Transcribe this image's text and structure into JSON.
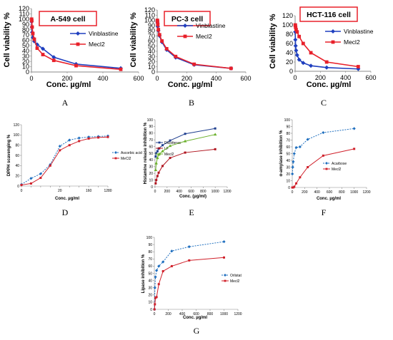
{
  "chart_data": [
    {
      "id": "A",
      "type": "line",
      "title": "A-549 cell",
      "xlabel": "Conc. µg/ml",
      "ylabel": "Cell viability %",
      "xlim": [
        0,
        600
      ],
      "ylim": [
        0,
        120
      ],
      "xticks": [
        0,
        200,
        400,
        600
      ],
      "yticks": [
        0,
        10,
        20,
        30,
        40,
        50,
        60,
        70,
        80,
        90,
        100,
        110,
        120
      ],
      "grid": false,
      "legend": "right",
      "series": [
        {
          "name": "Vinblastine",
          "color": "#1f3fbf",
          "marker": "diamond",
          "x": [
            1,
            2,
            4,
            8,
            16,
            32,
            64,
            125,
            250,
            500
          ],
          "y": [
            95,
            85,
            75,
            65,
            58,
            52,
            44,
            28,
            15,
            7
          ]
        },
        {
          "name": "Mecl2",
          "color": "#e8202a",
          "marker": "square",
          "x": [
            1,
            2,
            4,
            8,
            16,
            32,
            64,
            125,
            250,
            500
          ],
          "y": [
            100,
            97,
            85,
            73,
            62,
            45,
            33,
            22,
            12,
            5
          ]
        }
      ]
    },
    {
      "id": "B",
      "type": "line",
      "title": "PC-3 cell",
      "xlabel": "Conc. µg/ml",
      "ylabel": "Cell viability %",
      "xlim": [
        0,
        600
      ],
      "ylim": [
        0,
        120
      ],
      "xticks": [
        0,
        200,
        400,
        600
      ],
      "yticks": [
        0,
        10,
        20,
        30,
        40,
        50,
        60,
        70,
        80,
        90,
        100,
        110,
        120
      ],
      "grid": false,
      "legend": "right",
      "series": [
        {
          "name": "Vinblastine",
          "color": "#1f3fbf",
          "marker": "diamond",
          "x": [
            1,
            2,
            4,
            8,
            16,
            32,
            64,
            125,
            250,
            500
          ],
          "y": [
            98,
            95,
            88,
            80,
            70,
            58,
            43,
            28,
            14,
            7
          ]
        },
        {
          "name": "Mecl2",
          "color": "#e8202a",
          "marker": "square",
          "x": [
            1,
            2,
            4,
            8,
            16,
            32,
            64,
            125,
            250,
            500
          ],
          "y": [
            100,
            98,
            92,
            82,
            72,
            60,
            45,
            30,
            15,
            7
          ]
        }
      ]
    },
    {
      "id": "C",
      "type": "line",
      "title": "HCT-116 cell",
      "xlabel": "Conc. µg/ml",
      "ylabel": "Cell viability %",
      "xlim": [
        0,
        600
      ],
      "ylim": [
        0,
        120
      ],
      "xticks": [
        0,
        200,
        400,
        600
      ],
      "yticks": [
        0,
        20,
        40,
        60,
        80,
        100,
        120
      ],
      "grid": false,
      "legend": "right",
      "series": [
        {
          "name": "Vinblastine",
          "color": "#1f3fbf",
          "marker": "diamond",
          "x": [
            1,
            2,
            4,
            8,
            16,
            32,
            64,
            125,
            250,
            500
          ],
          "y": [
            85,
            68,
            55,
            45,
            35,
            25,
            18,
            12,
            8,
            5
          ]
        },
        {
          "name": "Mecl2",
          "color": "#e8202a",
          "marker": "square",
          "x": [
            1,
            2,
            4,
            8,
            16,
            32,
            64,
            125,
            250,
            500
          ],
          "y": [
            100,
            99,
            95,
            90,
            85,
            75,
            60,
            40,
            20,
            10
          ]
        }
      ]
    },
    {
      "id": "D",
      "type": "line",
      "title": "",
      "xlabel": "Conc. µg/ml",
      "ylabel": "DPPH scavenging %",
      "xscale": "categorical",
      "categories": [
        "0",
        "",
        "",
        "",
        "20",
        "",
        "",
        "160",
        "",
        "1280"
      ],
      "ylim": [
        0,
        120
      ],
      "yticks": [
        0,
        20,
        40,
        60,
        80,
        100,
        120
      ],
      "grid": false,
      "legend": "right",
      "series": [
        {
          "name": "Ascorbic acid",
          "color": "#1f6fbf",
          "marker": "diamond",
          "dashed": true,
          "y": [
            3,
            15,
            24,
            42,
            78,
            90,
            94,
            96,
            97,
            98
          ]
        },
        {
          "name": "MeCl2",
          "color": "#d0202a",
          "marker": "square",
          "dashed": false,
          "y": [
            2,
            5,
            16,
            40,
            70,
            80,
            88,
            93,
            95,
            96
          ]
        }
      ]
    },
    {
      "id": "E",
      "type": "line",
      "title": "",
      "xlabel": "Conc. (µg/ml)",
      "ylabel": "Histamine release inhibition %",
      "xlim": [
        0,
        1200
      ],
      "ylim": [
        0,
        100
      ],
      "xticks": [
        0,
        200,
        400,
        600,
        800,
        1000,
        1200
      ],
      "yticks": [
        0,
        10,
        20,
        30,
        40,
        50,
        60,
        70,
        80,
        90,
        100
      ],
      "grid": false,
      "legend": "left",
      "series": [
        {
          "name": "Diclofenac",
          "color": "#1f3f8f",
          "marker": "square",
          "x": [
            10,
            20,
            40,
            60,
            125,
            250,
            500,
            1000
          ],
          "y": [
            45,
            50,
            53,
            57,
            62,
            69,
            79,
            87
          ]
        },
        {
          "name": "LF",
          "color": "#b0141e",
          "marker": "square",
          "x": [
            10,
            20,
            40,
            60,
            125,
            250,
            500,
            1000
          ],
          "y": [
            5,
            10,
            16,
            21,
            31,
            43,
            51,
            56
          ]
        },
        {
          "name": "Mecl2",
          "color": "#6ab02a",
          "marker": "triangle",
          "x": [
            10,
            20,
            40,
            60,
            125,
            250,
            500,
            1000
          ],
          "y": [
            25,
            35,
            43,
            48,
            53,
            61,
            68,
            78
          ]
        }
      ]
    },
    {
      "id": "F",
      "type": "line",
      "title": "",
      "xlabel": "Conc. µg/ml",
      "ylabel": "α-amylase inhibition %",
      "xlim": [
        0,
        1200
      ],
      "ylim": [
        0,
        100
      ],
      "xticks": [
        0,
        200,
        400,
        600,
        800,
        1000,
        1200
      ],
      "yticks": [
        0,
        10,
        20,
        30,
        40,
        50,
        60,
        70,
        80,
        90,
        100
      ],
      "grid": false,
      "legend": "right",
      "series": [
        {
          "name": "Acarbose",
          "color": "#1f6fbf",
          "marker": "diamond",
          "dashed": true,
          "x": [
            2,
            8,
            16,
            32,
            64,
            125,
            250,
            500,
            1000
          ],
          "y": [
            20,
            30,
            38,
            50,
            59,
            60,
            71,
            81,
            87
          ]
        },
        {
          "name": "Mecl2",
          "color": "#d0202a",
          "marker": "square",
          "dashed": false,
          "x": [
            2,
            8,
            16,
            32,
            64,
            125,
            250,
            500,
            1000
          ],
          "y": [
            0,
            0,
            0,
            1,
            6,
            15,
            30,
            47,
            57
          ]
        }
      ]
    },
    {
      "id": "G",
      "type": "line",
      "title": "",
      "xlabel": "Conc. µg/ml",
      "ylabel": "Lipase inhibition %",
      "xlim": [
        0,
        1200
      ],
      "ylim": [
        0,
        100
      ],
      "xticks": [
        0,
        200,
        400,
        600,
        800,
        1000,
        1200
      ],
      "yticks": [
        0,
        10,
        20,
        30,
        40,
        50,
        60,
        70,
        80,
        90,
        100
      ],
      "grid": false,
      "legend": "right",
      "series": [
        {
          "name": "Orlistat",
          "color": "#1f6fbf",
          "marker": "diamond",
          "dashed": true,
          "x": [
            2,
            8,
            16,
            32,
            64,
            125,
            250,
            500,
            1000
          ],
          "y": [
            0,
            30,
            45,
            54,
            60,
            66,
            81,
            87,
            94
          ]
        },
        {
          "name": "Mecl2",
          "color": "#d0202a",
          "marker": "square",
          "dashed": false,
          "x": [
            2,
            8,
            16,
            32,
            64,
            125,
            250,
            500,
            1000
          ],
          "y": [
            0,
            7,
            16,
            17,
            35,
            53,
            60,
            68,
            72
          ]
        }
      ]
    }
  ],
  "panel_labels": [
    "A",
    "B",
    "C",
    "D",
    "E",
    "F",
    "G"
  ]
}
